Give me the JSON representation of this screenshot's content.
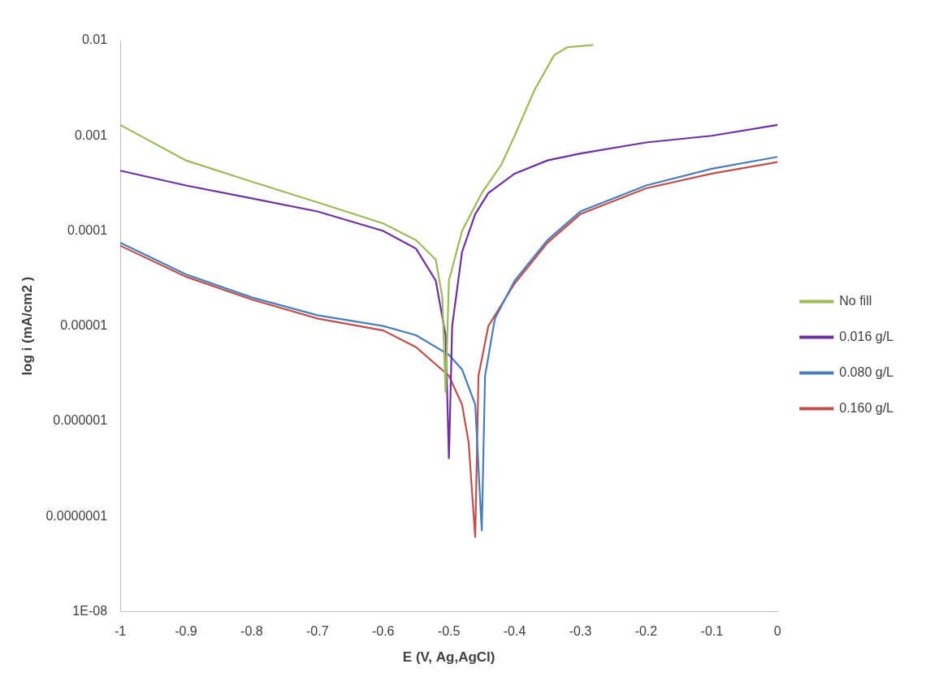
{
  "chart_data": {
    "type": "line",
    "x_label": "E (V, Ag,AgCl)",
    "y_label": "log i (mA/cm2 )",
    "log": "y",
    "grid": false,
    "legend": "right",
    "xlim": [
      -1,
      0
    ],
    "xticks": [
      -1,
      -0.9,
      -0.8,
      -0.7,
      -0.6,
      -0.5,
      -0.4,
      -0.3,
      -0.2,
      -0.1,
      0
    ],
    "ylim": [
      1e-08,
      0.01
    ],
    "yticks": [
      {
        "value": 1e-08,
        "label": "1E-08"
      },
      {
        "value": 1e-07,
        "label": "0.0000001"
      },
      1e-06,
      1e-05,
      0.0001,
      0.001,
      0.01
    ],
    "series": [
      {
        "name": "No fill",
        "color": "#9bbb59",
        "x": [
          -1,
          -0.9,
          -0.8,
          -0.7,
          -0.6,
          -0.55,
          -0.52,
          -0.51,
          -0.505,
          -0.5,
          -0.48,
          -0.45,
          -0.42,
          -0.4,
          -0.37,
          -0.34,
          -0.32,
          -0.28
        ],
        "values": [
          0.0013,
          0.00055,
          0.00033,
          0.0002,
          0.00012,
          8e-05,
          5e-05,
          2e-05,
          2e-06,
          3e-05,
          0.0001,
          0.00025,
          0.0005,
          0.001,
          0.003,
          0.007,
          0.0085,
          0.009
        ]
      },
      {
        "name": "0.016 g/L",
        "color": "#7030a0",
        "x": [
          -1,
          -0.9,
          -0.8,
          -0.7,
          -0.6,
          -0.55,
          -0.52,
          -0.505,
          -0.5,
          -0.495,
          -0.48,
          -0.46,
          -0.44,
          -0.4,
          -0.35,
          -0.3,
          -0.2,
          -0.1,
          0
        ],
        "values": [
          0.00043,
          0.0003,
          0.00022,
          0.00016,
          0.0001,
          6.5e-05,
          3e-05,
          8e-06,
          4e-07,
          1e-05,
          6e-05,
          0.00015,
          0.00025,
          0.0004,
          0.00055,
          0.00065,
          0.00085,
          0.001,
          0.0013
        ]
      },
      {
        "name": "0.080 g/L",
        "color": "#4a7ebb",
        "x": [
          -1,
          -0.9,
          -0.8,
          -0.7,
          -0.6,
          -0.55,
          -0.5,
          -0.48,
          -0.46,
          -0.45,
          -0.445,
          -0.43,
          -0.4,
          -0.35,
          -0.3,
          -0.2,
          -0.1,
          0
        ],
        "values": [
          7.5e-05,
          3.5e-05,
          2e-05,
          1.3e-05,
          1e-05,
          8e-06,
          5e-06,
          3.5e-06,
          1.5e-06,
          7e-08,
          3e-06,
          1.2e-05,
          3e-05,
          8e-05,
          0.00016,
          0.0003,
          0.00045,
          0.0006
        ]
      },
      {
        "name": "0.160 g/L",
        "color": "#c0504d",
        "x": [
          -1,
          -0.9,
          -0.8,
          -0.7,
          -0.6,
          -0.55,
          -0.5,
          -0.48,
          -0.47,
          -0.46,
          -0.455,
          -0.44,
          -0.4,
          -0.35,
          -0.3,
          -0.2,
          -0.1,
          0
        ],
        "values": [
          7e-05,
          3.3e-05,
          1.9e-05,
          1.2e-05,
          9e-06,
          6e-06,
          3e-06,
          1.5e-06,
          6e-07,
          6e-08,
          3e-06,
          1e-05,
          2.8e-05,
          7.5e-05,
          0.00015,
          0.00028,
          0.0004,
          0.00053
        ]
      }
    ]
  }
}
